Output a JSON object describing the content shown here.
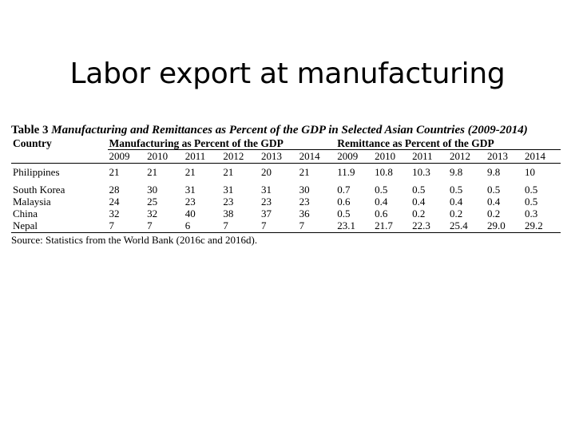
{
  "slide": {
    "title": "Labor export at manufacturing"
  },
  "table": {
    "caption_lead": "Table 3",
    "caption_text": "Manufacturing and Remittances as Percent of the GDP in Selected Asian Countries (2009-2014)",
    "country_header": "Country",
    "group_manufacturing": "Manufacturing as Percent of the GDP",
    "group_remittance": "Remittance as Percent of the GDP",
    "years": [
      "2009",
      "2010",
      "2011",
      "2012",
      "2013",
      "2014"
    ],
    "rows": [
      {
        "country": "Philippines",
        "manufacturing": [
          "21",
          "21",
          "21",
          "21",
          "20",
          "21"
        ],
        "remittance": [
          "11.9",
          "10.8",
          "10.3",
          "9.8",
          "9.8",
          "10"
        ]
      },
      {
        "country": "South Korea",
        "manufacturing": [
          "28",
          "30",
          "31",
          "31",
          "31",
          "30"
        ],
        "remittance": [
          "0.7",
          "0.5",
          "0.5",
          "0.5",
          "0.5",
          "0.5"
        ]
      },
      {
        "country": "Malaysia",
        "manufacturing": [
          "24",
          "25",
          "23",
          "23",
          "23",
          "23"
        ],
        "remittance": [
          "0.6",
          "0.4",
          "0.4",
          "0.4",
          "0.4",
          "0.5"
        ]
      },
      {
        "country": "China",
        "manufacturing": [
          "32",
          "32",
          "40",
          "38",
          "37",
          "36"
        ],
        "remittance": [
          "0.5",
          "0.6",
          "0.2",
          "0.2",
          "0.2",
          "0.3"
        ]
      },
      {
        "country": "Nepal",
        "manufacturing": [
          "7",
          "7",
          "6",
          "7",
          "7",
          "7"
        ],
        "remittance": [
          "23.1",
          "21.7",
          "22.3",
          "25.4",
          "29.0",
          "29.2"
        ]
      }
    ],
    "source": "Source: Statistics from the World Bank (2016c and 2016d)."
  }
}
